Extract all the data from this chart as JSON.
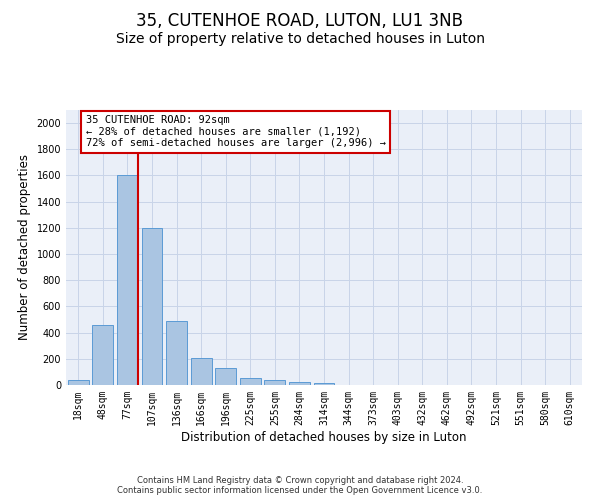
{
  "title1": "35, CUTENHOE ROAD, LUTON, LU1 3NB",
  "title2": "Size of property relative to detached houses in Luton",
  "xlabel": "Distribution of detached houses by size in Luton",
  "ylabel": "Number of detached properties",
  "footnote": "Contains HM Land Registry data © Crown copyright and database right 2024.\nContains public sector information licensed under the Open Government Licence v3.0.",
  "categories": [
    "18sqm",
    "48sqm",
    "77sqm",
    "107sqm",
    "136sqm",
    "166sqm",
    "196sqm",
    "225sqm",
    "255sqm",
    "284sqm",
    "314sqm",
    "344sqm",
    "373sqm",
    "403sqm",
    "432sqm",
    "462sqm",
    "492sqm",
    "521sqm",
    "551sqm",
    "580sqm",
    "610sqm"
  ],
  "values": [
    35,
    460,
    1600,
    1200,
    490,
    210,
    130,
    50,
    40,
    25,
    15,
    0,
    0,
    0,
    0,
    0,
    0,
    0,
    0,
    0,
    0
  ],
  "bar_color": "#aac5e2",
  "bar_edge_color": "#5b9bd5",
  "vline_x": 2.425,
  "vline_color": "#cc0000",
  "annotation_text": "35 CUTENHOE ROAD: 92sqm\n← 28% of detached houses are smaller (1,192)\n72% of semi-detached houses are larger (2,996) →",
  "annotation_box_edgecolor": "#cc0000",
  "ylim": [
    0,
    2100
  ],
  "yticks": [
    0,
    200,
    400,
    600,
    800,
    1000,
    1200,
    1400,
    1600,
    1800,
    2000
  ],
  "grid_color": "#c8d4e8",
  "background_color": "#eaeff8",
  "title1_fontsize": 12,
  "title2_fontsize": 10,
  "xlabel_fontsize": 8.5,
  "ylabel_fontsize": 8.5,
  "tick_fontsize": 7,
  "footnote_fontsize": 6,
  "ann_fontsize": 7.5
}
